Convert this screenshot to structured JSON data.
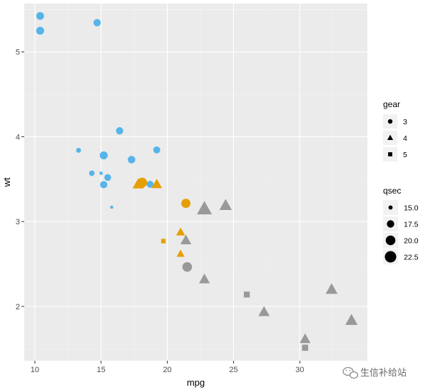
{
  "chart_data": {
    "type": "scatter",
    "xlabel": "mpg",
    "ylabel": "wt",
    "xlim": [
      9.2,
      35.1
    ],
    "ylim": [
      1.36,
      5.57
    ],
    "xticks": [
      10,
      15,
      20,
      25,
      30
    ],
    "yticks": [
      2,
      3,
      4,
      5
    ],
    "grid": true,
    "colors": {
      "panel_bg": "#ebebeb",
      "grid_major": "#ffffff",
      "grid_minor": "#f5f5f5",
      "point_default": "#999999",
      "point_blue": "#56b4e9",
      "point_orange": "#e69f00",
      "legend_key_bg": "#f2f2f2",
      "legend_point": "#000000"
    },
    "points": [
      {
        "mpg": 21.0,
        "wt": 2.62,
        "qsec": 16.46,
        "gear": 4,
        "color": "orange"
      },
      {
        "mpg": 21.0,
        "wt": 2.875,
        "qsec": 17.02,
        "gear": 4,
        "color": "orange"
      },
      {
        "mpg": 22.8,
        "wt": 2.32,
        "qsec": 18.61,
        "gear": 4,
        "color": "gray"
      },
      {
        "mpg": 21.4,
        "wt": 3.215,
        "qsec": 19.44,
        "gear": 3,
        "color": "orange"
      },
      {
        "mpg": 18.7,
        "wt": 3.44,
        "qsec": 17.02,
        "gear": 3,
        "color": "blue"
      },
      {
        "mpg": 18.1,
        "wt": 3.46,
        "qsec": 20.22,
        "gear": 3,
        "color": "orange"
      },
      {
        "mpg": 14.3,
        "wt": 3.57,
        "qsec": 15.84,
        "gear": 3,
        "color": "blue"
      },
      {
        "mpg": 24.4,
        "wt": 3.19,
        "qsec": 20.0,
        "gear": 4,
        "color": "gray"
      },
      {
        "mpg": 22.8,
        "wt": 3.15,
        "qsec": 22.9,
        "gear": 4,
        "color": "gray"
      },
      {
        "mpg": 19.2,
        "wt": 3.44,
        "qsec": 18.3,
        "gear": 4,
        "color": "orange"
      },
      {
        "mpg": 17.8,
        "wt": 3.44,
        "qsec": 18.9,
        "gear": 4,
        "color": "orange"
      },
      {
        "mpg": 16.4,
        "wt": 4.07,
        "qsec": 17.4,
        "gear": 3,
        "color": "blue"
      },
      {
        "mpg": 17.3,
        "wt": 3.73,
        "qsec": 17.6,
        "gear": 3,
        "color": "blue"
      },
      {
        "mpg": 15.2,
        "wt": 3.78,
        "qsec": 18.0,
        "gear": 3,
        "color": "blue"
      },
      {
        "mpg": 10.4,
        "wt": 5.25,
        "qsec": 17.98,
        "gear": 3,
        "color": "blue"
      },
      {
        "mpg": 10.4,
        "wt": 5.424,
        "qsec": 17.82,
        "gear": 3,
        "color": "blue"
      },
      {
        "mpg": 14.7,
        "wt": 5.345,
        "qsec": 17.42,
        "gear": 3,
        "color": "blue"
      },
      {
        "mpg": 32.4,
        "wt": 2.2,
        "qsec": 19.47,
        "gear": 4,
        "color": "gray"
      },
      {
        "mpg": 30.4,
        "wt": 1.615,
        "qsec": 18.52,
        "gear": 4,
        "color": "gray"
      },
      {
        "mpg": 33.9,
        "wt": 1.835,
        "qsec": 19.9,
        "gear": 4,
        "color": "gray"
      },
      {
        "mpg": 21.5,
        "wt": 2.465,
        "qsec": 20.01,
        "gear": 3,
        "color": "gray"
      },
      {
        "mpg": 15.5,
        "wt": 3.52,
        "qsec": 16.87,
        "gear": 3,
        "color": "blue"
      },
      {
        "mpg": 15.2,
        "wt": 3.435,
        "qsec": 17.3,
        "gear": 3,
        "color": "blue"
      },
      {
        "mpg": 13.3,
        "wt": 3.84,
        "qsec": 15.41,
        "gear": 3,
        "color": "blue"
      },
      {
        "mpg": 19.2,
        "wt": 3.845,
        "qsec": 17.05,
        "gear": 3,
        "color": "blue"
      },
      {
        "mpg": 27.3,
        "wt": 1.935,
        "qsec": 18.9,
        "gear": 4,
        "color": "gray"
      },
      {
        "mpg": 26.0,
        "wt": 2.14,
        "qsec": 16.7,
        "gear": 5,
        "color": "gray"
      },
      {
        "mpg": 30.4,
        "wt": 1.513,
        "qsec": 16.9,
        "gear": 5,
        "color": "gray"
      },
      {
        "mpg": 15.8,
        "wt": 3.17,
        "qsec": 14.5,
        "gear": 5,
        "color": "blue"
      },
      {
        "mpg": 19.7,
        "wt": 2.77,
        "qsec": 15.5,
        "gear": 5,
        "color": "orange"
      },
      {
        "mpg": 15.0,
        "wt": 3.57,
        "qsec": 14.6,
        "gear": 5,
        "color": "blue"
      },
      {
        "mpg": 21.4,
        "wt": 2.78,
        "qsec": 18.6,
        "gear": 4,
        "color": "gray"
      }
    ],
    "legend_gear": {
      "title": "gear",
      "entries": [
        {
          "label": "3",
          "shape": "circle"
        },
        {
          "label": "4",
          "shape": "triangle"
        },
        {
          "label": "5",
          "shape": "square"
        }
      ]
    },
    "legend_qsec": {
      "title": "qsec",
      "entries": [
        {
          "label": "15.0",
          "value": 15.0
        },
        {
          "label": "17.5",
          "value": 17.5
        },
        {
          "label": "20.0",
          "value": 20.0
        },
        {
          "label": "22.5",
          "value": 22.5
        }
      ]
    }
  },
  "watermark": {
    "text": "生信补给站"
  }
}
